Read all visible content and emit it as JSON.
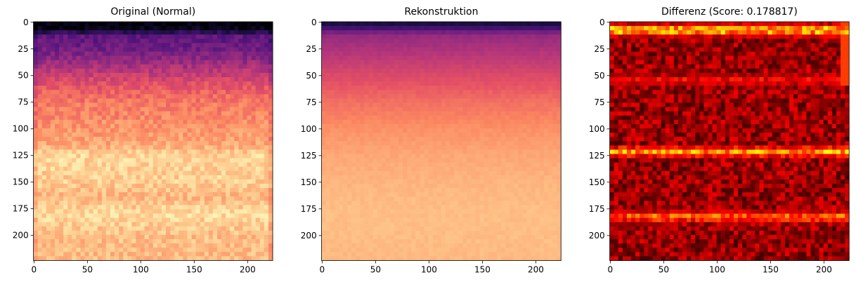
{
  "chart_data": [
    {
      "type": "heatmap",
      "title": "Original (Normal)",
      "colormap": "magma",
      "xlim": [
        0,
        224
      ],
      "ylim": [
        224,
        0
      ],
      "xticks": [
        0,
        50,
        100,
        150,
        200
      ],
      "yticks": [
        0,
        25,
        50,
        75,
        100,
        125,
        150,
        175,
        200
      ],
      "row_profile": [
        {
          "y": 0,
          "value": 0.0
        },
        {
          "y": 8,
          "value": 0.05
        },
        {
          "y": 12,
          "value": 0.28
        },
        {
          "y": 25,
          "value": 0.33
        },
        {
          "y": 40,
          "value": 0.45
        },
        {
          "y": 55,
          "value": 0.6
        },
        {
          "y": 75,
          "value": 0.72
        },
        {
          "y": 100,
          "value": 0.78
        },
        {
          "y": 115,
          "value": 0.82
        },
        {
          "y": 125,
          "value": 0.92
        },
        {
          "y": 150,
          "value": 0.9
        },
        {
          "y": 165,
          "value": 0.85
        },
        {
          "y": 180,
          "value": 0.93
        },
        {
          "y": 200,
          "value": 0.87
        },
        {
          "y": 224,
          "value": 0.86
        }
      ]
    },
    {
      "type": "heatmap",
      "title": "Rekonstruktion",
      "colormap": "magma",
      "xlim": [
        0,
        224
      ],
      "ylim": [
        224,
        0
      ],
      "xticks": [
        0,
        50,
        100,
        150,
        200
      ],
      "yticks": [
        0,
        25,
        50,
        75,
        100,
        125,
        150,
        175,
        200
      ],
      "row_profile": [
        {
          "y": 0,
          "value": 0.08
        },
        {
          "y": 6,
          "value": 0.22
        },
        {
          "y": 12,
          "value": 0.42
        },
        {
          "y": 30,
          "value": 0.5
        },
        {
          "y": 50,
          "value": 0.6
        },
        {
          "y": 75,
          "value": 0.7
        },
        {
          "y": 100,
          "value": 0.77
        },
        {
          "y": 125,
          "value": 0.82
        },
        {
          "y": 150,
          "value": 0.85
        },
        {
          "y": 175,
          "value": 0.87
        },
        {
          "y": 200,
          "value": 0.87
        },
        {
          "y": 224,
          "value": 0.86
        }
      ]
    },
    {
      "type": "heatmap",
      "title": "Differenz (Score: 0.178817)",
      "colormap": "hot",
      "xlim": [
        0,
        224
      ],
      "ylim": [
        224,
        0
      ],
      "xticks": [
        0,
        50,
        100,
        150,
        200
      ],
      "yticks": [
        0,
        25,
        50,
        75,
        100,
        125,
        150,
        175,
        200
      ],
      "bright_bands": [
        {
          "y": 8,
          "value": 0.85
        },
        {
          "y": 55,
          "value": 0.45
        },
        {
          "y": 122,
          "value": 0.7
        },
        {
          "y": 183,
          "value": 0.65
        }
      ],
      "background_value": 0.2
    }
  ]
}
